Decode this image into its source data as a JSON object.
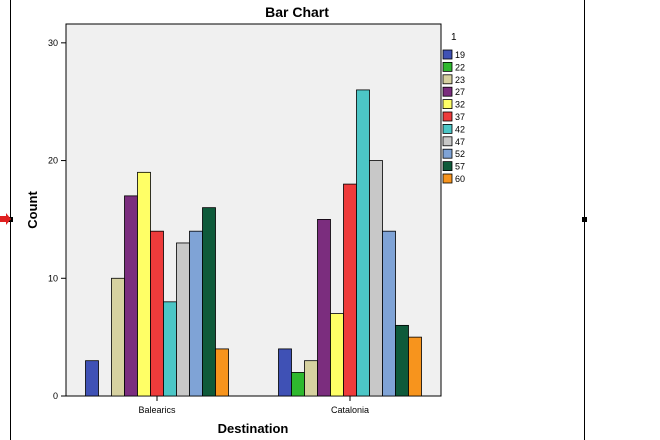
{
  "chart_data": {
    "type": "bar",
    "title": "Bar Chart",
    "xlabel": "Destination",
    "ylabel": "Count",
    "categories": [
      "Balearics",
      "Catalonia"
    ],
    "ylim": [
      0,
      30
    ],
    "yticks": [
      0,
      10,
      20,
      30
    ],
    "grid": false,
    "legend_title": "1",
    "legend_position": "top-right",
    "series": [
      {
        "name": "19",
        "color": "#3F51B5",
        "values": [
          3,
          4
        ]
      },
      {
        "name": "22",
        "color": "#2EB82E",
        "values": [
          0,
          2
        ]
      },
      {
        "name": "23",
        "color": "#D6D1A0",
        "values": [
          10,
          3
        ]
      },
      {
        "name": "27",
        "color": "#7B2D7E",
        "values": [
          17,
          15
        ]
      },
      {
        "name": "32",
        "color": "#FFFF66",
        "values": [
          19,
          7
        ]
      },
      {
        "name": "37",
        "color": "#EE3B3B",
        "values": [
          14,
          18
        ]
      },
      {
        "name": "42",
        "color": "#4CC6C6",
        "values": [
          8,
          26
        ]
      },
      {
        "name": "47",
        "color": "#C8C8C8",
        "values": [
          13,
          20
        ]
      },
      {
        "name": "52",
        "color": "#7FA3D6",
        "values": [
          14,
          14
        ]
      },
      {
        "name": "57",
        "color": "#0E5A3A",
        "values": [
          16,
          6
        ]
      },
      {
        "name": "60",
        "color": "#F7941D",
        "values": [
          4,
          5
        ]
      }
    ]
  }
}
